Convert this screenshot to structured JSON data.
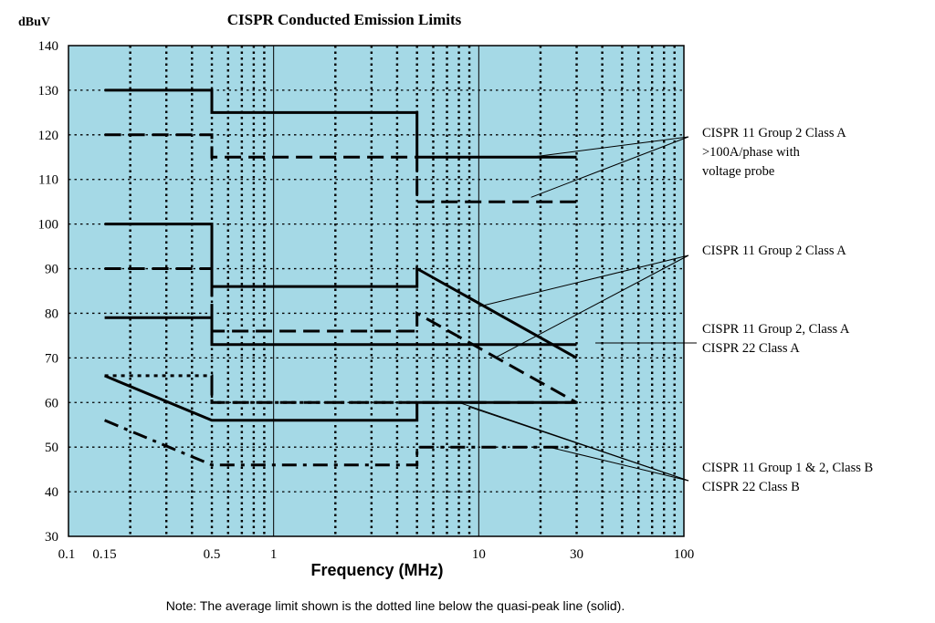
{
  "chart_data": {
    "type": "line",
    "title": "CISPR Conducted Emission Limits",
    "ylabel": "dBuV",
    "xlabel": "Frequency (MHz)",
    "x_scale": "log",
    "xlim": [
      0.1,
      100
    ],
    "ylim": [
      30,
      140
    ],
    "grid": "dotted",
    "plot_background": "#a5d9e6",
    "x_tick_labels": [
      {
        "value": 0.1,
        "label": "0.1"
      },
      {
        "value": 0.15,
        "label": "0.15"
      },
      {
        "value": 0.5,
        "label": "0.5"
      },
      {
        "value": 1,
        "label": "1"
      },
      {
        "value": 10,
        "label": "10"
      },
      {
        "value": 30,
        "label": "30"
      },
      {
        "value": 100,
        "label": "100"
      }
    ],
    "y_ticks": [
      30,
      40,
      50,
      60,
      70,
      80,
      90,
      100,
      110,
      120,
      130,
      140
    ],
    "series": [
      {
        "style": "solid",
        "points": [
          [
            0.15,
            130
          ],
          [
            0.5,
            130
          ],
          [
            0.5,
            125
          ],
          [
            5,
            125
          ],
          [
            5,
            115
          ],
          [
            30,
            115
          ]
        ]
      },
      {
        "style": "dashed",
        "points": [
          [
            0.15,
            120
          ],
          [
            0.5,
            120
          ],
          [
            0.5,
            115
          ],
          [
            5,
            115
          ],
          [
            5,
            105
          ],
          [
            30,
            105
          ]
        ]
      },
      {
        "style": "solid",
        "points": [
          [
            0.15,
            100
          ],
          [
            0.5,
            100
          ],
          [
            0.5,
            86
          ],
          [
            5,
            86
          ],
          [
            5,
            90
          ],
          [
            30,
            70
          ]
        ]
      },
      {
        "style": "dashed",
        "points": [
          [
            0.15,
            90
          ],
          [
            0.5,
            90
          ],
          [
            0.5,
            76
          ],
          [
            5,
            76
          ],
          [
            5,
            80
          ],
          [
            30,
            60
          ]
        ]
      },
      {
        "style": "solid",
        "points": [
          [
            0.15,
            79
          ],
          [
            0.5,
            79
          ],
          [
            0.5,
            73
          ],
          [
            30,
            73
          ]
        ]
      },
      {
        "style": "dashed",
        "points": [
          [
            0.5,
            66
          ],
          [
            0.5,
            60
          ],
          [
            30,
            60
          ]
        ]
      },
      {
        "style": "solid",
        "points": [
          [
            0.15,
            66
          ],
          [
            0.5,
            56
          ],
          [
            5,
            56
          ],
          [
            5,
            60
          ],
          [
            30,
            60
          ]
        ]
      },
      {
        "style": "dotted",
        "points": [
          [
            0.15,
            66
          ],
          [
            0.5,
            66
          ],
          [
            0.5,
            60
          ],
          [
            5,
            60
          ]
        ]
      },
      {
        "style": "dashdot",
        "points": [
          [
            0.15,
            56
          ],
          [
            0.5,
            46
          ],
          [
            5,
            46
          ],
          [
            5,
            50
          ],
          [
            30,
            50
          ]
        ]
      }
    ],
    "annotations": [
      {
        "lines": [
          "CISPR 11 Group 2 Class A",
          ">100A/phase with",
          "voltage probe"
        ]
      },
      {
        "lines": [
          "CISPR 11 Group 2 Class A"
        ]
      },
      {
        "lines": [
          "CISPR 11 Group 2, Class A",
          "CISPR 22 Class A"
        ]
      },
      {
        "lines": [
          "CISPR 11 Group 1 & 2, Class B",
          "CISPR 22 Class B"
        ]
      }
    ],
    "note": "Note:  The average limit shown is the dotted line below the quasi-peak line (solid)."
  }
}
